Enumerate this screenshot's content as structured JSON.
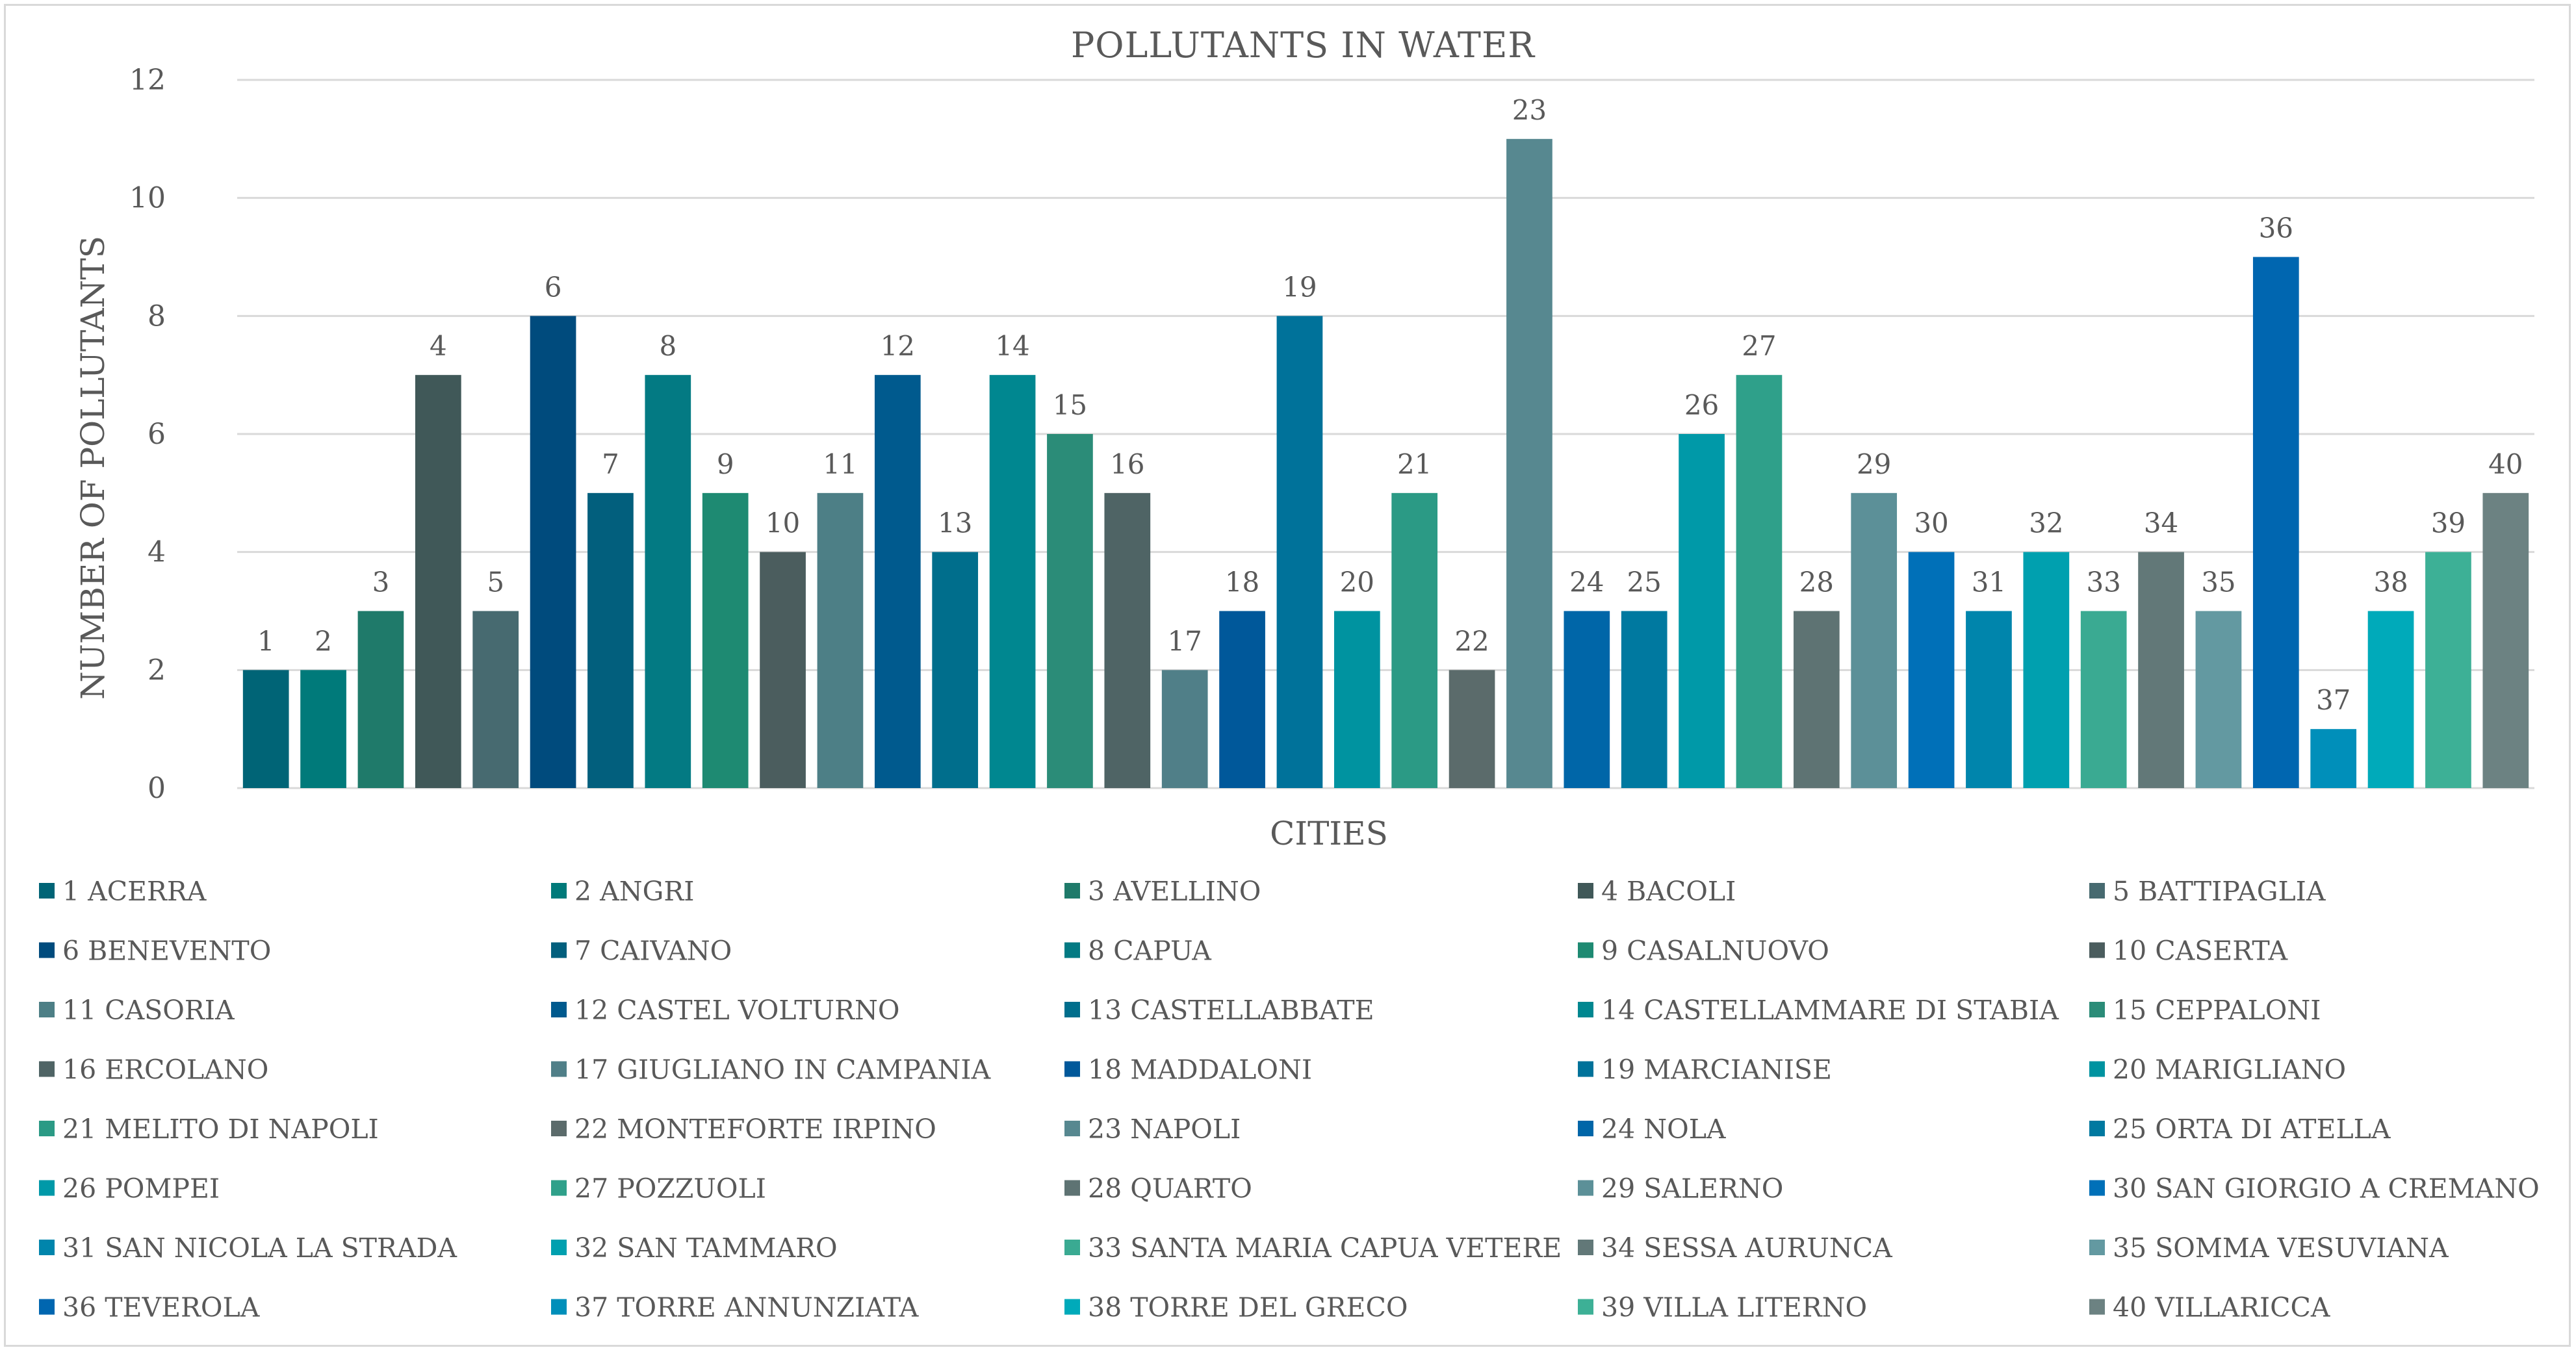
{
  "chart_data": {
    "type": "bar",
    "title": "POLLUTANTS IN WATER",
    "xlabel": "CITIES",
    "ylabel": "NUMBER OF POLLUTANTS",
    "ylim": [
      0,
      12
    ],
    "yticks": [
      "0",
      "2",
      "4",
      "6",
      "8",
      "10",
      "12"
    ],
    "grid": true,
    "legend_position": "bottom",
    "categories": [
      "1",
      "2",
      "3",
      "4",
      "5",
      "6",
      "7",
      "8",
      "9",
      "10",
      "11",
      "12",
      "13",
      "14",
      "15",
      "16",
      "17",
      "18",
      "19",
      "20",
      "21",
      "22",
      "23",
      "24",
      "25",
      "26",
      "27",
      "28",
      "29",
      "30",
      "31",
      "32",
      "33",
      "34",
      "35",
      "36",
      "37",
      "38",
      "39",
      "40"
    ],
    "values": [
      2,
      2,
      3,
      7,
      3,
      8,
      5,
      7,
      5,
      4,
      5,
      7,
      4,
      7,
      6,
      5,
      2,
      3,
      8,
      3,
      5,
      2,
      11,
      3,
      3,
      6,
      7,
      3,
      5,
      4,
      3,
      4,
      3,
      4,
      3,
      9,
      1,
      3,
      4,
      5
    ],
    "colors": [
      "#006476",
      "#007A7A",
      "#1F7A6A",
      "#405858",
      "#476A70",
      "#004B7D",
      "#025F7D",
      "#037A83",
      "#1E8A72",
      "#4B5D5E",
      "#4D7F86",
      "#005A8E",
      "#006E8C",
      "#008790",
      "#2B8C78",
      "#4F6465",
      "#507F88",
      "#00589A",
      "#00729A",
      "#0093A0",
      "#2B9A85",
      "#5B6B6B",
      "#578890",
      "#0066A8",
      "#0079A0",
      "#0099A8",
      "#2FA08A",
      "#5E7373",
      "#5C9098",
      "#0070B8",
      "#0085AC",
      "#00A0AF",
      "#3AAA92",
      "#627878",
      "#6399A1",
      "#0066B0",
      "#008FBA",
      "#00AABA",
      "#3DB096",
      "#6C8282"
    ],
    "legend": [
      "1 ACERRA",
      "2 ANGRI",
      "3 AVELLINO",
      "4 BACOLI",
      "5 BATTIPAGLIA",
      "6 BENEVENTO",
      "7 CAIVANO",
      "8 CAPUA",
      "9 CASALNUOVO",
      "10 CASERTA",
      "11 CASORIA",
      "12 CASTEL VOLTURNO",
      "13 CASTELLABBATE",
      "14 CASTELLAMMARE DI STABIA",
      "15 CEPPALONI",
      "16 ERCOLANO",
      "17 GIUGLIANO IN CAMPANIA",
      "18 MADDALONI",
      "19 MARCIANISE",
      "20 MARIGLIANO",
      "21 MELITO DI NAPOLI",
      "22 MONTEFORTE IRPINO",
      "23 NAPOLI",
      "24 NOLA",
      "25 ORTA DI ATELLA",
      "26 POMPEI",
      "27 POZZUOLI",
      "28 QUARTO",
      "29 SALERNO",
      "30 SAN GIORGIO A CREMANO",
      "31 SAN NICOLA LA STRADA",
      "32 SAN TAMMARO",
      "33 SANTA MARIA CAPUA VETERE",
      "34 SESSA AURUNCA",
      "35 SOMMA VESUVIANA",
      "36 TEVEROLA",
      "37 TORRE ANNUNZIATA",
      "38 TORRE DEL GRECO",
      "39 VILLA LITERNO",
      "40 VILLARICCA"
    ]
  }
}
